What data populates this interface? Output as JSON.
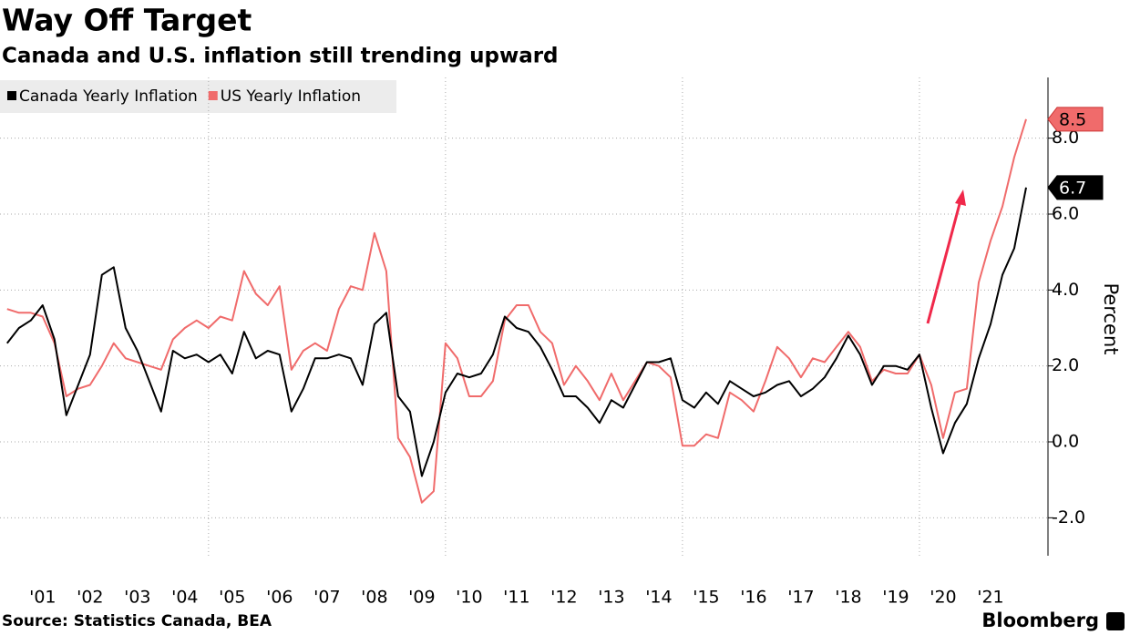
{
  "chart_data": {
    "type": "line",
    "title": "Way Off Target",
    "subtitle": "Canada and U.S. inflation still trending upward",
    "y_label": "Percent",
    "source": "Source: Statistics Canada, BEA",
    "brand": "Bloomberg",
    "x": [
      2000.75,
      2001.0,
      2001.25,
      2001.5,
      2001.75,
      2002.0,
      2002.25,
      2002.5,
      2002.75,
      2003.0,
      2003.25,
      2003.5,
      2003.75,
      2004.0,
      2004.25,
      2004.5,
      2004.75,
      2005.0,
      2005.25,
      2005.5,
      2005.75,
      2006.0,
      2006.25,
      2006.5,
      2006.75,
      2007.0,
      2007.25,
      2007.5,
      2007.75,
      2008.0,
      2008.25,
      2008.5,
      2008.75,
      2009.0,
      2009.25,
      2009.5,
      2009.75,
      2010.0,
      2010.25,
      2010.5,
      2010.75,
      2011.0,
      2011.25,
      2011.5,
      2011.75,
      2012.0,
      2012.25,
      2012.5,
      2012.75,
      2013.0,
      2013.25,
      2013.5,
      2013.75,
      2014.0,
      2014.25,
      2014.5,
      2014.75,
      2015.0,
      2015.25,
      2015.5,
      2015.75,
      2016.0,
      2016.25,
      2016.5,
      2016.75,
      2017.0,
      2017.25,
      2017.5,
      2017.75,
      2018.0,
      2018.25,
      2018.5,
      2018.75,
      2019.0,
      2019.25,
      2019.5,
      2019.75,
      2020.0,
      2020.25,
      2020.5,
      2020.75,
      2021.0,
      2021.25,
      2021.5,
      2021.75,
      2022.0,
      2022.25
    ],
    "series": [
      {
        "name": "Canada Yearly Inflation",
        "color": "#000000",
        "values": [
          2.6,
          3.0,
          3.2,
          3.6,
          2.7,
          0.7,
          1.5,
          2.3,
          4.4,
          4.6,
          3.0,
          2.4,
          1.6,
          0.8,
          2.4,
          2.2,
          2.3,
          2.1,
          2.3,
          1.8,
          2.9,
          2.2,
          2.4,
          2.3,
          0.8,
          1.4,
          2.2,
          2.2,
          2.3,
          2.2,
          1.5,
          3.1,
          3.4,
          1.2,
          0.8,
          -0.9,
          0.0,
          1.3,
          1.8,
          1.7,
          1.8,
          2.3,
          3.3,
          3.0,
          2.9,
          2.5,
          1.9,
          1.2,
          1.2,
          0.9,
          0.5,
          1.1,
          0.9,
          1.5,
          2.1,
          2.1,
          2.2,
          1.1,
          0.9,
          1.3,
          1.0,
          1.6,
          1.4,
          1.2,
          1.3,
          1.5,
          1.6,
          1.2,
          1.4,
          1.7,
          2.2,
          2.8,
          2.3,
          1.5,
          2.0,
          2.0,
          1.9,
          2.3,
          0.9,
          -0.3,
          0.5,
          1.0,
          2.2,
          3.1,
          4.4,
          5.1,
          6.7
        ]
      },
      {
        "name": "US Yearly Inflation",
        "color": "#f06b6b",
        "values": [
          3.5,
          3.4,
          3.4,
          3.3,
          2.6,
          1.2,
          1.4,
          1.5,
          2.0,
          2.6,
          2.2,
          2.1,
          2.0,
          1.9,
          2.7,
          3.0,
          3.2,
          3.0,
          3.3,
          3.2,
          4.5,
          3.9,
          3.6,
          4.1,
          1.9,
          2.4,
          2.6,
          2.4,
          3.5,
          4.1,
          4.0,
          5.5,
          4.5,
          0.1,
          -0.4,
          -1.6,
          -1.3,
          2.6,
          2.2,
          1.2,
          1.2,
          1.6,
          3.2,
          3.6,
          3.6,
          2.9,
          2.6,
          1.5,
          2.0,
          1.6,
          1.1,
          1.8,
          1.1,
          1.6,
          2.1,
          2.0,
          1.7,
          -0.1,
          -0.1,
          0.2,
          0.1,
          1.3,
          1.1,
          0.8,
          1.6,
          2.5,
          2.2,
          1.7,
          2.2,
          2.1,
          2.5,
          2.9,
          2.5,
          1.6,
          1.9,
          1.8,
          1.8,
          2.3,
          1.5,
          0.1,
          1.3,
          1.4,
          4.2,
          5.3,
          6.2,
          7.5,
          8.5
        ]
      }
    ],
    "xlim": [
      2000.6,
      2022.52
    ],
    "xticks": [
      {
        "value": 2001.5,
        "label": "'01"
      },
      {
        "value": 2002.5,
        "label": "'02"
      },
      {
        "value": 2003.5,
        "label": "'03"
      },
      {
        "value": 2004.5,
        "label": "'04"
      },
      {
        "value": 2005.5,
        "label": "'05"
      },
      {
        "value": 2006.5,
        "label": "'06"
      },
      {
        "value": 2007.5,
        "label": "'07"
      },
      {
        "value": 2008.5,
        "label": "'08"
      },
      {
        "value": 2009.5,
        "label": "'09"
      },
      {
        "value": 2010.5,
        "label": "'10"
      },
      {
        "value": 2011.5,
        "label": "'11"
      },
      {
        "value": 2012.5,
        "label": "'12"
      },
      {
        "value": 2013.5,
        "label": "'13"
      },
      {
        "value": 2014.5,
        "label": "'14"
      },
      {
        "value": 2015.5,
        "label": "'15"
      },
      {
        "value": 2016.5,
        "label": "'16"
      },
      {
        "value": 2017.5,
        "label": "'17"
      },
      {
        "value": 2018.5,
        "label": "'18"
      },
      {
        "value": 2019.5,
        "label": "'19"
      },
      {
        "value": 2020.5,
        "label": "'20"
      },
      {
        "value": 2021.5,
        "label": "'21"
      }
    ],
    "xgrid": [
      2005,
      2010,
      2015,
      2020
    ],
    "ylim": [
      -3,
      9.6
    ],
    "yticks": [
      {
        "value": -2,
        "label": "-2.0"
      },
      {
        "value": 0,
        "label": "0.0"
      },
      {
        "value": 2,
        "label": "2.0"
      },
      {
        "value": 4,
        "label": "4.0"
      },
      {
        "value": 6,
        "label": "6.0"
      },
      {
        "value": 8,
        "label": "8.0"
      }
    ],
    "grid": true
  }
}
